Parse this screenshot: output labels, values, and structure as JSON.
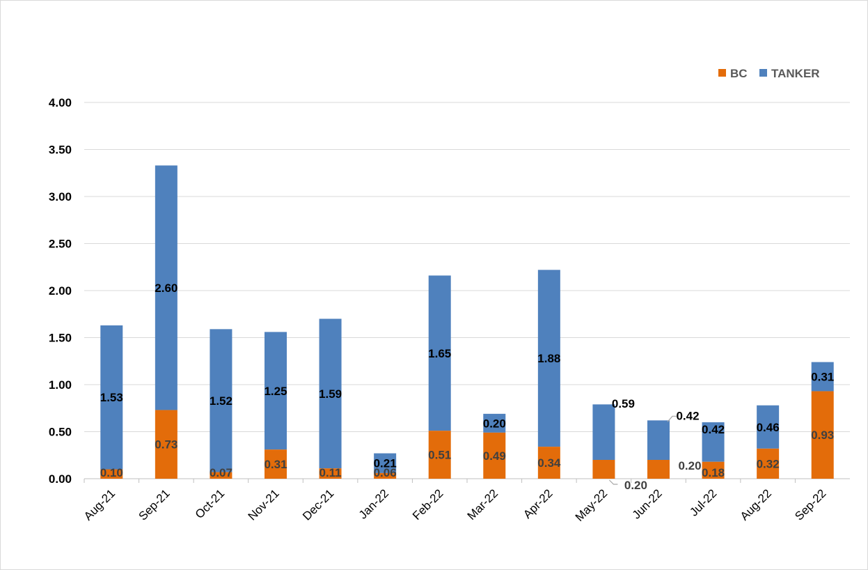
{
  "chart_data": {
    "type": "bar",
    "stacked": true,
    "title": "",
    "xlabel": "",
    "ylabel": "",
    "categories": [
      "Aug-21",
      "Sep-21",
      "Oct-21",
      "Nov-21",
      "Dec-21",
      "Jan-22",
      "Feb-22",
      "Mar-22",
      "Apr-22",
      "May-22",
      "Jun-22",
      "Jul-22",
      "Aug-22",
      "Sep-22"
    ],
    "series": [
      {
        "name": "BC",
        "color": "#E36C0A",
        "values": [
          0.1,
          0.73,
          0.07,
          0.31,
          0.11,
          0.06,
          0.51,
          0.49,
          0.34,
          0.2,
          0.2,
          0.18,
          0.32,
          0.93
        ]
      },
      {
        "name": "TANKER",
        "color": "#4F81BD",
        "values": [
          1.53,
          2.6,
          1.52,
          1.25,
          1.59,
          0.21,
          1.65,
          0.2,
          1.88,
          0.59,
          0.42,
          0.42,
          0.46,
          0.31
        ]
      }
    ],
    "data_labels": {
      "BC": [
        "0.10",
        "0.73",
        "0.07",
        "0.31",
        "0.11",
        "0.06",
        "0.51",
        "0.49",
        "0.34",
        "0.20",
        "0.20",
        "0.18",
        "0.32",
        "0.93"
      ],
      "TANKER": [
        "1.53",
        "2.60",
        "1.52",
        "1.25",
        "1.59",
        "0.21",
        "1.65",
        "0.20",
        "1.88",
        "0.59",
        "0.42",
        "0.42",
        "0.46",
        "0.31"
      ]
    },
    "y_ticks": [
      "0.00",
      "0.50",
      "1.00",
      "1.50",
      "2.00",
      "2.50",
      "3.00",
      "3.50",
      "4.00"
    ],
    "ylim": [
      0,
      4
    ],
    "grid": true,
    "legend_position": "top-right"
  }
}
